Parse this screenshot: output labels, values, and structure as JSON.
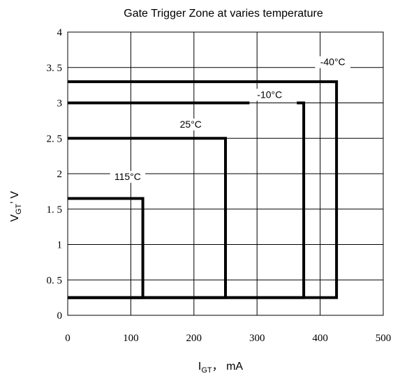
{
  "chart_data": {
    "type": "line",
    "title": "Gate Trigger Zone at varies temperature",
    "xlabel_main": "I",
    "xlabel_sub": "GT",
    "xlabel_suffix": "，  mA",
    "ylabel_main": "V",
    "ylabel_sub": "GT",
    "ylabel_suffix": "’  V",
    "xlim": [
      0,
      500
    ],
    "ylim": [
      0,
      4
    ],
    "xticks": [
      0,
      100,
      200,
      300,
      400,
      500
    ],
    "yticks": [
      0,
      0.5,
      1,
      1.5,
      2,
      2.5,
      3,
      3.5,
      4
    ],
    "xtick_labels": [
      "0",
      "100",
      "200",
      "300",
      "400",
      "500"
    ],
    "ytick_labels": [
      "0",
      "0. 5",
      "1",
      "1. 5",
      "2",
      "2. 5",
      "3",
      "3. 5",
      "4"
    ],
    "grid": true,
    "series": [
      {
        "name": "115°C",
        "segments": [
          [
            [
              0,
              1.65
            ],
            [
              119,
              1.65
            ],
            [
              119,
              0.25
            ],
            [
              0,
              0.25
            ]
          ]
        ]
      },
      {
        "name": "25°C",
        "segments": [
          [
            [
              0,
              2.5
            ],
            [
              250,
              2.5
            ],
            [
              250,
              0.25
            ],
            [
              0,
              0.25
            ]
          ]
        ]
      },
      {
        "name": "-10°C",
        "segments": [
          [
            [
              0,
              3.0
            ],
            [
              288,
              3.0
            ]
          ],
          [
            [
              363,
              3.0
            ],
            [
              374,
              3.0
            ],
            [
              374,
              0.25
            ],
            [
              0,
              0.25
            ]
          ]
        ]
      },
      {
        "name": "-40°C",
        "segments": [
          [
            [
              0,
              3.3
            ],
            [
              426,
              3.3
            ],
            [
              426,
              0.25
            ],
            [
              0,
              0.25
            ]
          ]
        ]
      }
    ],
    "annotations": [
      {
        "text": "-40°C",
        "x": 420,
        "y": 3.58
      },
      {
        "text": "-10°C",
        "x": 320,
        "y": 3.12
      },
      {
        "text": "25°C",
        "x": 195,
        "y": 2.7
      },
      {
        "text": "115°C",
        "x": 95,
        "y": 1.96
      }
    ]
  }
}
